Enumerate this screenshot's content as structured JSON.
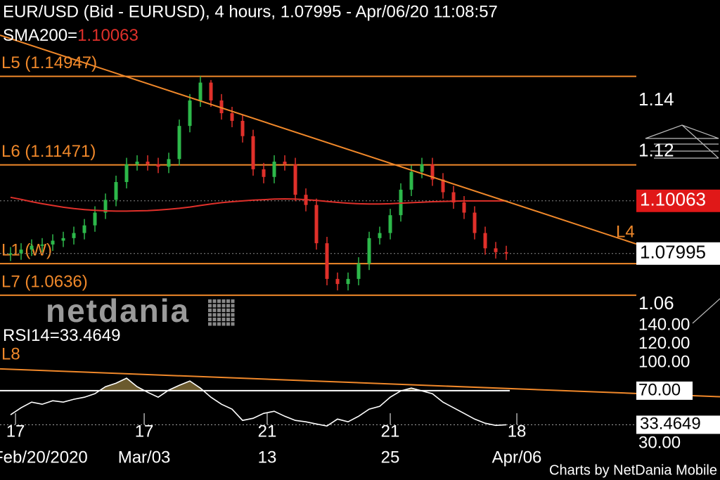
{
  "chart_data": {
    "type": "candlestick",
    "title": "EUR/USD (Bid - EURUSD),  4 hours, 1.07995 - Apr/06/20 11:08:57",
    "sma_label": "SMA200=",
    "up_color": "#2db84a",
    "down_color": "#e0302a",
    "sma_color": "#e0302a",
    "level_color": "#f0882a",
    "xlim": [
      -1,
      59.33
    ],
    "ylim": [
      1.0526,
      1.1794
    ],
    "yticks": [
      1.14,
      1.12,
      1.06
    ],
    "open": [
      1.0795,
      1.08,
      1.0815,
      1.083,
      1.0835,
      1.085,
      1.086,
      1.088,
      1.091,
      1.096,
      1.101,
      1.108,
      1.115,
      1.116,
      1.115,
      1.114,
      1.117,
      1.13,
      1.14,
      1.147,
      1.14,
      1.135,
      1.132,
      1.126,
      1.113,
      1.11,
      1.116,
      1.115,
      1.103,
      1.099,
      1.084,
      1.07,
      1.068,
      1.07,
      1.076,
      1.086,
      1.088,
      1.095,
      1.105,
      1.112,
      1.115,
      1.109,
      1.104,
      1.1,
      1.096,
      1.088,
      1.082,
      1.0805
    ],
    "high": [
      1.0825,
      1.084,
      1.0855,
      1.086,
      1.0875,
      1.0885,
      1.0905,
      1.0935,
      1.0985,
      1.1035,
      1.1105,
      1.1175,
      1.1185,
      1.1185,
      1.1175,
      1.1195,
      1.1325,
      1.1425,
      1.1495,
      1.148,
      1.1425,
      1.1375,
      1.1345,
      1.1285,
      1.1155,
      1.1185,
      1.1185,
      1.1175,
      1.1055,
      1.1015,
      1.0865,
      1.0725,
      1.0725,
      1.0785,
      1.0885,
      1.0905,
      1.0975,
      1.1075,
      1.1145,
      1.1175,
      1.1175,
      1.1115,
      1.1065,
      1.1025,
      1.0985,
      1.0905,
      1.0845,
      1.083
    ],
    "low": [
      1.077,
      1.0775,
      1.079,
      1.0805,
      1.081,
      1.0825,
      1.0835,
      1.0855,
      1.0885,
      1.0935,
      1.0985,
      1.1055,
      1.1125,
      1.1125,
      1.1115,
      1.1115,
      1.1145,
      1.1275,
      1.1375,
      1.1375,
      1.1325,
      1.1295,
      1.1235,
      1.1105,
      1.1075,
      1.1075,
      1.1125,
      1.1005,
      1.0965,
      1.0815,
      1.0675,
      1.0655,
      1.0655,
      1.0675,
      1.0735,
      1.0835,
      1.0855,
      1.0925,
      1.1025,
      1.1095,
      1.1065,
      1.1015,
      1.0975,
      1.0935,
      1.0855,
      1.0795,
      1.078,
      1.07745
    ],
    "close": [
      1.08,
      1.0815,
      1.083,
      1.0835,
      1.085,
      1.086,
      1.088,
      1.091,
      1.096,
      1.101,
      1.108,
      1.115,
      1.116,
      1.115,
      1.114,
      1.117,
      1.13,
      1.14,
      1.147,
      1.14,
      1.135,
      1.132,
      1.126,
      1.113,
      1.11,
      1.116,
      1.115,
      1.103,
      1.099,
      1.084,
      1.07,
      1.068,
      1.07,
      1.076,
      1.086,
      1.088,
      1.095,
      1.105,
      1.112,
      1.115,
      1.109,
      1.104,
      1.1,
      1.096,
      1.088,
      1.082,
      1.0805,
      1.07995
    ],
    "sma": [
      1.102,
      1.1012,
      1.1003,
      1.0995,
      1.0988,
      1.0981,
      1.0976,
      1.0972,
      1.0969,
      1.0967,
      1.0966,
      1.0966,
      1.0967,
      1.0968,
      1.097,
      1.0973,
      1.0977,
      1.0982,
      1.0988,
      1.0994,
      1.0999,
      1.1003,
      1.1006,
      1.1009,
      1.1011,
      1.1013,
      1.1014,
      1.1013,
      1.1011,
      1.1008,
      1.1004,
      1.1,
      1.0997,
      1.0995,
      1.0994,
      1.0994,
      1.0995,
      1.0997,
      1.0999,
      1.1001,
      1.1003,
      1.1004,
      1.1005,
      1.1006,
      1.1006,
      1.1006,
      1.1006,
      1.10063
    ],
    "levels": [
      {
        "label": "L5 (1.14947)",
        "value": 1.14947
      },
      {
        "label": "L6 (1.11471)",
        "value": 1.11471
      },
      {
        "label": "L1 (W)",
        "value": 1.076
      },
      {
        "label": "L7 (1.0636)",
        "value": 1.0636
      }
    ],
    "trendline": {
      "label": "L4",
      "x": [
        -1,
        59.33
      ],
      "y": [
        1.1656,
        1.0837
      ]
    },
    "xticks": [
      {
        "value": 0.47,
        "label": "17"
      },
      {
        "value": 12.67,
        "label": "17"
      },
      {
        "value": 24.33,
        "label": "21"
      },
      {
        "value": 36,
        "label": "21"
      },
      {
        "value": 48,
        "label": "18"
      }
    ],
    "xticks_lower": [
      "Feb/20/2020",
      "Mar/03",
      "13",
      "25",
      "Apr/06"
    ],
    "logo": "netdania",
    "rsi": {
      "label": "RSI14=",
      "color": "#ffffff",
      "ylim": [
        30,
        140
      ],
      "yticks": [
        {
          "value": 140,
          "label": "140.00"
        },
        {
          "value": 120,
          "label": "120.00"
        },
        {
          "value": 100,
          "label": "100.00"
        },
        {
          "value": 70,
          "label": "70.00"
        },
        {
          "value": 30,
          "label": "30.00"
        }
      ],
      "level": 70,
      "values": [
        44.2,
        51.7,
        57.7,
        55.5,
        59.2,
        57.7,
        60.8,
        63.0,
        66.8,
        74.3,
        78.1,
        83.4,
        74.3,
        68.3,
        63.0,
        70.6,
        75.8,
        80.4,
        72.8,
        63.0,
        55.5,
        50.2,
        38.1,
        40.4,
        45.7,
        47.9,
        42.6,
        38.1,
        36.6,
        34.3,
        32.1,
        39.6,
        36.6,
        42.6,
        50.2,
        53.2,
        63.0,
        69.8,
        72.8,
        69.8,
        66.8,
        57.7,
        51.7,
        45.7,
        39.6,
        35.1,
        32.8,
        33.4649
      ],
      "trendline": {
        "label": "L8",
        "x": [
          -1,
          59.33
        ],
        "y": [
          93.4,
          67
        ]
      }
    },
    "footer": "Charts by NetDania Mobile"
  }
}
